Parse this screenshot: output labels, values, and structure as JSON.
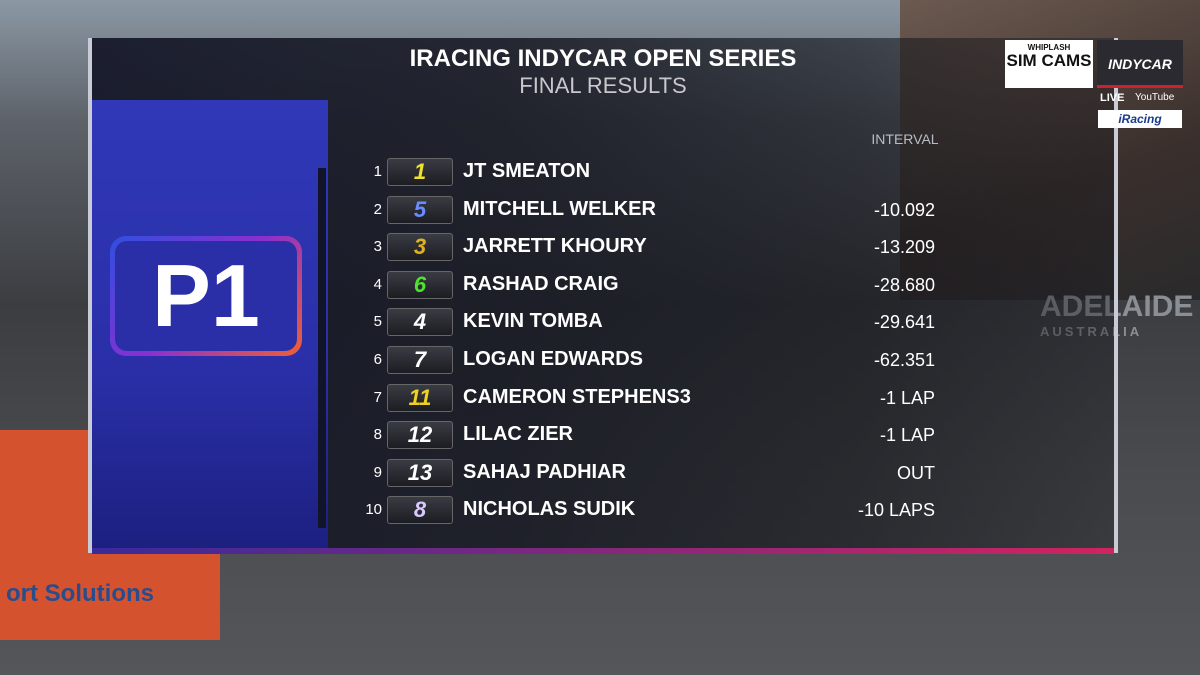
{
  "header": {
    "title": "IRACING INDYCAR OPEN SERIES",
    "subtitle": "FINAL RESULTS"
  },
  "badge": "P1",
  "column_header": "INTERVAL",
  "logos": {
    "sponsor": "WHIPLASH",
    "sim_cams": "SIM CAMS",
    "series": "INDYCAR",
    "live": "LIVE",
    "youtube": "YouTube",
    "iracing": "iRacing"
  },
  "background": {
    "banner": "ort Solutions",
    "track_sign": "ADELAIDE",
    "track_sign_sub": "AUSTRALIA"
  },
  "rows": [
    {
      "position": 1,
      "car": "1",
      "driver": "JT SMEATON",
      "interval": null
    },
    {
      "position": 2,
      "car": "5",
      "driver": "MITCHELL WELKER",
      "interval": "-10.092"
    },
    {
      "position": 3,
      "car": "3",
      "driver": "JARRETT KHOURY",
      "interval": "-13.209"
    },
    {
      "position": 4,
      "car": "6",
      "driver": "RASHAD CRAIG",
      "interval": "-28.680"
    },
    {
      "position": 5,
      "car": "4",
      "driver": "KEVIN TOMBA",
      "interval": "-29.641"
    },
    {
      "position": 6,
      "car": "7",
      "driver": "LOGAN EDWARDS",
      "interval": "-62.351"
    },
    {
      "position": 7,
      "car": "11",
      "driver": "CAMERON STEPHENS3",
      "interval": "-1 LAP"
    },
    {
      "position": 8,
      "car": "12",
      "driver": "LILAC ZIER",
      "interval": "-1 LAP"
    },
    {
      "position": 9,
      "car": "13",
      "driver": "SAHAJ PADHIAR",
      "interval": "OUT"
    },
    {
      "position": 10,
      "car": "8",
      "driver": "NICHOLAS SUDIK",
      "interval": "-10 LAPS"
    }
  ]
}
